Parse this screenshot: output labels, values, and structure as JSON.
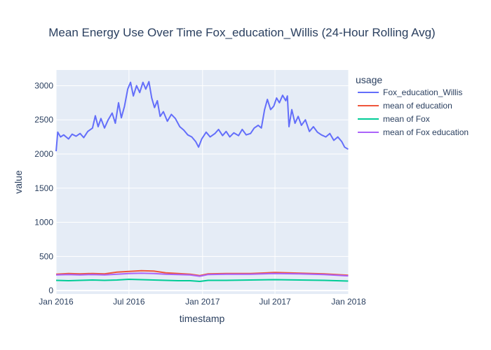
{
  "chart_data": {
    "type": "line",
    "title": "Mean Energy Use Over Time Fox_education_Willis (24-Hour Rolling Avg)",
    "xlabel": "timestamp",
    "ylabel": "value",
    "x_ticks": [
      {
        "date": "2016-01-01",
        "label": "Jan 2016"
      },
      {
        "date": "2016-07-01",
        "label": "Jul 2016"
      },
      {
        "date": "2017-01-01",
        "label": "Jan 2017"
      },
      {
        "date": "2017-07-01",
        "label": "Jul 2017"
      },
      {
        "date": "2018-01-01",
        "label": "Jan 2018"
      }
    ],
    "y_ticks": [
      0,
      500,
      1000,
      1500,
      2000,
      2500,
      3000
    ],
    "xlim": [
      "2016-01-01",
      "2018-01-01"
    ],
    "ylim": [
      -50,
      3230
    ],
    "grid": true,
    "legend_title": "usage",
    "legend_position": "right",
    "series": [
      {
        "name": "Fox_education_Willis",
        "color": "#636efa",
        "points": [
          [
            "2016-01-01",
            2040
          ],
          [
            "2016-01-05",
            2320
          ],
          [
            "2016-01-12",
            2250
          ],
          [
            "2016-01-20",
            2280
          ],
          [
            "2016-02-01",
            2220
          ],
          [
            "2016-02-10",
            2290
          ],
          [
            "2016-02-20",
            2260
          ],
          [
            "2016-03-01",
            2300
          ],
          [
            "2016-03-10",
            2240
          ],
          [
            "2016-03-20",
            2330
          ],
          [
            "2016-04-01",
            2380
          ],
          [
            "2016-04-08",
            2560
          ],
          [
            "2016-04-15",
            2400
          ],
          [
            "2016-04-22",
            2520
          ],
          [
            "2016-05-01",
            2380
          ],
          [
            "2016-05-10",
            2500
          ],
          [
            "2016-05-20",
            2600
          ],
          [
            "2016-05-28",
            2450
          ],
          [
            "2016-06-05",
            2750
          ],
          [
            "2016-06-12",
            2530
          ],
          [
            "2016-06-20",
            2700
          ],
          [
            "2016-06-28",
            2950
          ],
          [
            "2016-07-05",
            3050
          ],
          [
            "2016-07-12",
            2850
          ],
          [
            "2016-07-20",
            3000
          ],
          [
            "2016-07-28",
            2900
          ],
          [
            "2016-08-05",
            3050
          ],
          [
            "2016-08-12",
            2950
          ],
          [
            "2016-08-20",
            3060
          ],
          [
            "2016-08-27",
            2820
          ],
          [
            "2016-09-03",
            2680
          ],
          [
            "2016-09-10",
            2780
          ],
          [
            "2016-09-17",
            2550
          ],
          [
            "2016-09-25",
            2620
          ],
          [
            "2016-10-05",
            2480
          ],
          [
            "2016-10-15",
            2580
          ],
          [
            "2016-10-25",
            2520
          ],
          [
            "2016-11-05",
            2400
          ],
          [
            "2016-11-15",
            2350
          ],
          [
            "2016-11-25",
            2280
          ],
          [
            "2016-12-05",
            2250
          ],
          [
            "2016-12-15",
            2180
          ],
          [
            "2016-12-22",
            2100
          ],
          [
            "2016-12-30",
            2220
          ],
          [
            "2017-01-10",
            2320
          ],
          [
            "2017-01-20",
            2250
          ],
          [
            "2017-02-01",
            2300
          ],
          [
            "2017-02-10",
            2360
          ],
          [
            "2017-02-20",
            2270
          ],
          [
            "2017-03-01",
            2330
          ],
          [
            "2017-03-10",
            2250
          ],
          [
            "2017-03-20",
            2310
          ],
          [
            "2017-04-01",
            2270
          ],
          [
            "2017-04-10",
            2360
          ],
          [
            "2017-04-20",
            2280
          ],
          [
            "2017-05-01",
            2300
          ],
          [
            "2017-05-10",
            2380
          ],
          [
            "2017-05-20",
            2420
          ],
          [
            "2017-05-28",
            2380
          ],
          [
            "2017-06-05",
            2650
          ],
          [
            "2017-06-12",
            2800
          ],
          [
            "2017-06-20",
            2650
          ],
          [
            "2017-06-28",
            2700
          ],
          [
            "2017-07-05",
            2820
          ],
          [
            "2017-07-12",
            2750
          ],
          [
            "2017-07-20",
            2860
          ],
          [
            "2017-07-28",
            2780
          ],
          [
            "2017-08-01",
            2850
          ],
          [
            "2017-08-05",
            2400
          ],
          [
            "2017-08-12",
            2650
          ],
          [
            "2017-08-20",
            2450
          ],
          [
            "2017-08-28",
            2550
          ],
          [
            "2017-09-05",
            2420
          ],
          [
            "2017-09-15",
            2500
          ],
          [
            "2017-09-25",
            2330
          ],
          [
            "2017-10-05",
            2400
          ],
          [
            "2017-10-15",
            2320
          ],
          [
            "2017-10-25",
            2280
          ],
          [
            "2017-11-05",
            2250
          ],
          [
            "2017-11-15",
            2300
          ],
          [
            "2017-11-25",
            2200
          ],
          [
            "2017-12-05",
            2250
          ],
          [
            "2017-12-15",
            2180
          ],
          [
            "2017-12-22",
            2100
          ],
          [
            "2017-12-31",
            2070
          ]
        ]
      },
      {
        "name": "mean of education",
        "color": "#ef553b",
        "points": [
          [
            "2016-01-01",
            240
          ],
          [
            "2016-02-01",
            250
          ],
          [
            "2016-03-01",
            245
          ],
          [
            "2016-04-01",
            250
          ],
          [
            "2016-05-01",
            245
          ],
          [
            "2016-06-01",
            270
          ],
          [
            "2016-07-01",
            280
          ],
          [
            "2016-08-01",
            290
          ],
          [
            "2016-09-01",
            285
          ],
          [
            "2016-10-01",
            260
          ],
          [
            "2016-11-01",
            250
          ],
          [
            "2016-12-01",
            240
          ],
          [
            "2016-12-25",
            220
          ],
          [
            "2017-01-15",
            245
          ],
          [
            "2017-03-01",
            250
          ],
          [
            "2017-05-01",
            250
          ],
          [
            "2017-07-01",
            265
          ],
          [
            "2017-09-01",
            255
          ],
          [
            "2017-11-01",
            245
          ],
          [
            "2017-12-31",
            225
          ]
        ]
      },
      {
        "name": "mean of Fox",
        "color": "#00cc96",
        "points": [
          [
            "2016-01-01",
            150
          ],
          [
            "2016-02-01",
            145
          ],
          [
            "2016-03-01",
            150
          ],
          [
            "2016-04-01",
            155
          ],
          [
            "2016-05-01",
            150
          ],
          [
            "2016-06-01",
            155
          ],
          [
            "2016-07-01",
            165
          ],
          [
            "2016-08-01",
            160
          ],
          [
            "2016-09-01",
            155
          ],
          [
            "2016-10-01",
            150
          ],
          [
            "2016-11-01",
            145
          ],
          [
            "2016-12-01",
            145
          ],
          [
            "2016-12-25",
            135
          ],
          [
            "2017-01-15",
            150
          ],
          [
            "2017-03-01",
            150
          ],
          [
            "2017-05-01",
            155
          ],
          [
            "2017-07-01",
            160
          ],
          [
            "2017-09-01",
            155
          ],
          [
            "2017-11-01",
            150
          ],
          [
            "2017-12-31",
            140
          ]
        ]
      },
      {
        "name": "mean of Fox education",
        "color": "#ab63fa",
        "points": [
          [
            "2016-01-01",
            230
          ],
          [
            "2016-02-01",
            235
          ],
          [
            "2016-03-01",
            230
          ],
          [
            "2016-04-01",
            235
          ],
          [
            "2016-05-01",
            230
          ],
          [
            "2016-06-01",
            240
          ],
          [
            "2016-07-01",
            250
          ],
          [
            "2016-08-01",
            255
          ],
          [
            "2016-09-01",
            250
          ],
          [
            "2016-10-01",
            240
          ],
          [
            "2016-11-01",
            235
          ],
          [
            "2016-12-01",
            230
          ],
          [
            "2016-12-25",
            210
          ],
          [
            "2017-01-15",
            235
          ],
          [
            "2017-03-01",
            240
          ],
          [
            "2017-05-01",
            240
          ],
          [
            "2017-07-01",
            250
          ],
          [
            "2017-09-01",
            245
          ],
          [
            "2017-11-01",
            235
          ],
          [
            "2017-12-31",
            215
          ]
        ]
      }
    ]
  }
}
